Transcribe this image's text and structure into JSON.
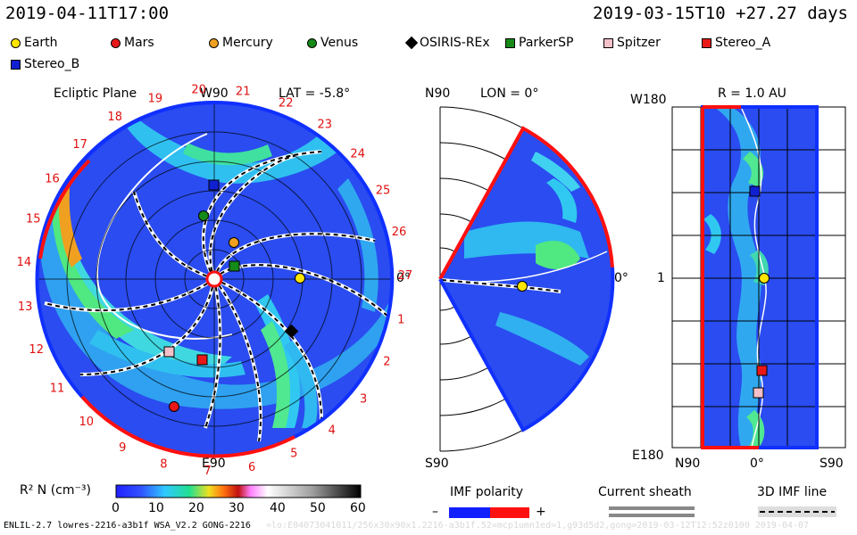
{
  "header": {
    "left": "2019-04-11T17:00",
    "right": "2019-03-15T10 +27.27 days"
  },
  "legend": [
    {
      "name": "Earth",
      "color": "#ffe600",
      "shape": "circle"
    },
    {
      "name": "Mars",
      "color": "#e81818",
      "shape": "circle"
    },
    {
      "name": "Mercury",
      "color": "#f0a020",
      "shape": "circle"
    },
    {
      "name": "Venus",
      "color": "#158a18",
      "shape": "circle"
    },
    {
      "name": "OSIRIS-REx",
      "color": "#000000",
      "shape": "diamond"
    },
    {
      "name": "ParkerSP",
      "color": "#158a18",
      "shape": "square"
    },
    {
      "name": "Spitzer",
      "color": "#f5c0c8",
      "shape": "square"
    },
    {
      "name": "Stereo_A",
      "color": "#e81818",
      "shape": "square"
    },
    {
      "name": "Stereo_B",
      "color": "#1020d0",
      "shape": "square"
    }
  ],
  "panels": {
    "ecliptic": {
      "title": "Ecliptic Plane",
      "lat_label": "LAT = -5.8°",
      "top_label": "W90",
      "bottom_label": "E90",
      "right_label": "0°",
      "day_labels": [
        "1",
        "2",
        "3",
        "4",
        "5",
        "6",
        "7",
        "8",
        "9",
        "10",
        "11",
        "12",
        "13",
        "14",
        "15",
        "16",
        "17",
        "18",
        "19",
        "20",
        "21",
        "22",
        "23",
        "24",
        "25",
        "26",
        "27"
      ]
    },
    "meridional": {
      "title": "LON = 0°",
      "top_label": "N90",
      "bottom_label": "S90",
      "right_label": "0°"
    },
    "radial": {
      "title": "R = 1.0 AU",
      "top_label": "W180",
      "bottom_label": "E180",
      "mid_label": "1",
      "x_labels": [
        "N90",
        "0°",
        "S90"
      ]
    }
  },
  "colorbar": {
    "label": "R² N (cm⁻³)",
    "ticks": [
      "0",
      "10",
      "20",
      "30",
      "40",
      "50",
      "60"
    ]
  },
  "imf_polarity": {
    "label": "IMF polarity",
    "minus": "–",
    "plus": "+",
    "colors": [
      "#1020ff",
      "#ff1010"
    ]
  },
  "current_sheath": {
    "label": "Current sheath"
  },
  "imf_line": {
    "label": "3D IMF line"
  },
  "footer": "ENLIL-2.7 lowres-2216-a3b1f WSA_V2.2 GONG-2216",
  "footer_faint": "=lo:E04073041011/256x30x90x1.2216-a3b1f.52=mcp1umn1ed=1,g93d5d2,gong=2019-03-12T12:52z0100 2019-04-07",
  "chart_data": [
    {
      "type": "heatmap",
      "title": "Ecliptic Plane",
      "subtitle": "LAT = -5.8°",
      "variable": "R² N (cm⁻³)",
      "range": [
        0,
        60
      ],
      "bodies": [
        "Earth",
        "Mars",
        "Mercury",
        "Venus",
        "OSIRIS-REx",
        "ParkerSP",
        "Spitzer",
        "Stereo_A",
        "Stereo_B"
      ],
      "day_ticks": [
        1,
        2,
        3,
        4,
        5,
        6,
        7,
        8,
        9,
        10,
        11,
        12,
        13,
        14,
        15,
        16,
        17,
        18,
        19,
        20,
        21,
        22,
        23,
        24,
        25,
        26,
        27
      ]
    },
    {
      "type": "heatmap",
      "title": "LON = 0°",
      "variable": "R² N (cm⁻³)",
      "range": [
        0,
        60
      ],
      "axis_labels": [
        "N90",
        "0°",
        "S90"
      ],
      "bodies": [
        "Earth"
      ]
    },
    {
      "type": "heatmap",
      "title": "R = 1.0 AU",
      "variable": "R² N (cm⁻³)",
      "range": [
        0,
        60
      ],
      "x_ticks": [
        "N90",
        "0°",
        "S90"
      ],
      "y_ticks": [
        "W180",
        "1",
        "E180"
      ],
      "bodies": [
        "Stereo_B",
        "Earth",
        "Stereo_A",
        "Spitzer"
      ]
    }
  ]
}
